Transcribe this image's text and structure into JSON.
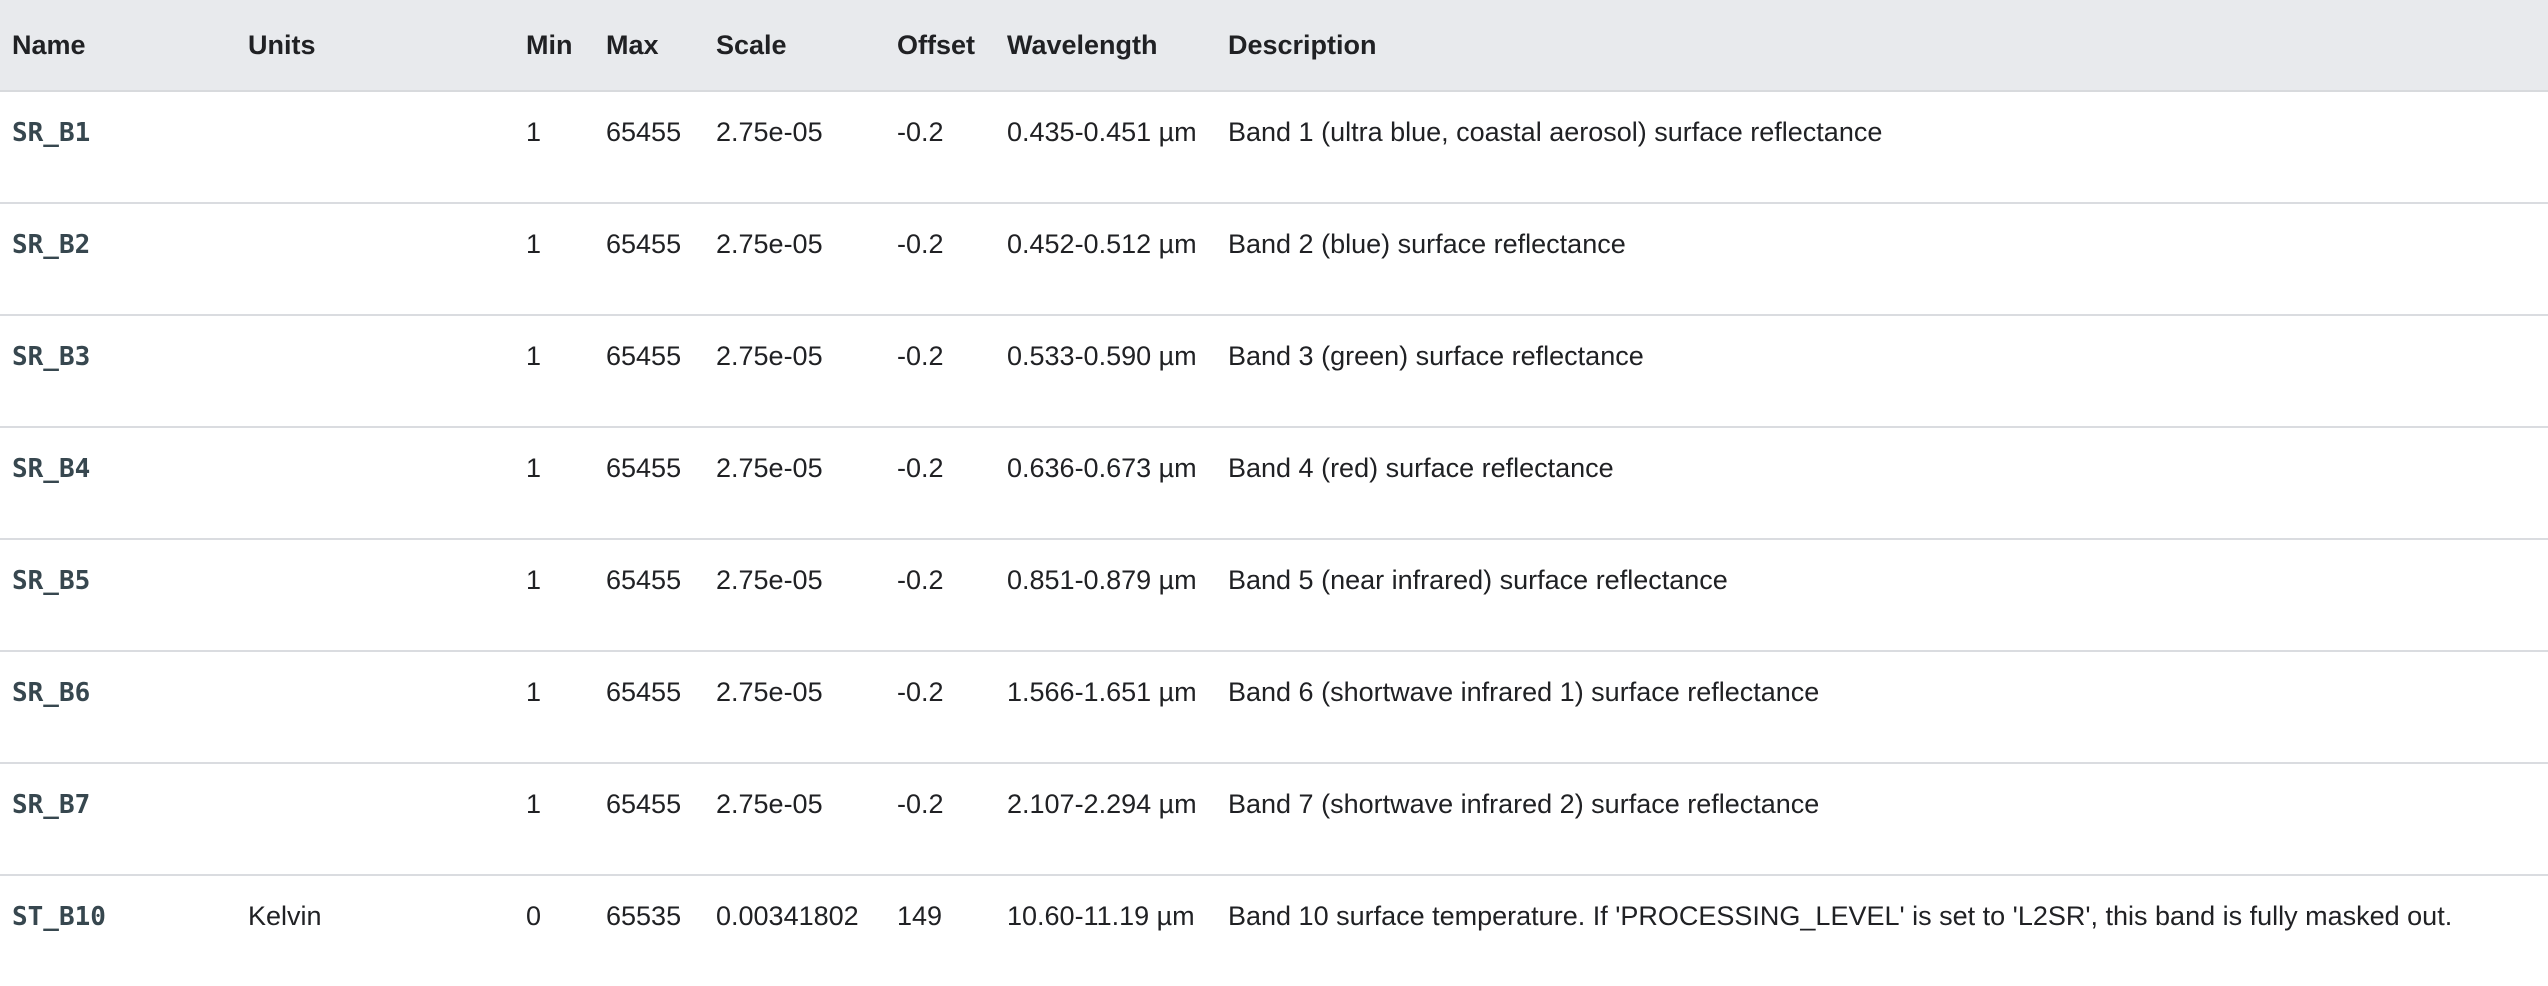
{
  "table": {
    "headers": {
      "name": "Name",
      "units": "Units",
      "min": "Min",
      "max": "Max",
      "scale": "Scale",
      "offset": "Offset",
      "wavelength": "Wavelength",
      "description": "Description"
    },
    "rows": [
      {
        "name": "SR_B1",
        "units": "",
        "min": "1",
        "max": "65455",
        "scale": "2.75e-05",
        "offset": "-0.2",
        "wavelength": "0.435-0.451 µm",
        "description": "Band 1 (ultra blue, coastal aerosol) surface reflectance"
      },
      {
        "name": "SR_B2",
        "units": "",
        "min": "1",
        "max": "65455",
        "scale": "2.75e-05",
        "offset": "-0.2",
        "wavelength": "0.452-0.512 µm",
        "description": "Band 2 (blue) surface reflectance"
      },
      {
        "name": "SR_B3",
        "units": "",
        "min": "1",
        "max": "65455",
        "scale": "2.75e-05",
        "offset": "-0.2",
        "wavelength": "0.533-0.590 µm",
        "description": "Band 3 (green) surface reflectance"
      },
      {
        "name": "SR_B4",
        "units": "",
        "min": "1",
        "max": "65455",
        "scale": "2.75e-05",
        "offset": "-0.2",
        "wavelength": "0.636-0.673 µm",
        "description": "Band 4 (red) surface reflectance"
      },
      {
        "name": "SR_B5",
        "units": "",
        "min": "1",
        "max": "65455",
        "scale": "2.75e-05",
        "offset": "-0.2",
        "wavelength": "0.851-0.879 µm",
        "description": "Band 5 (near infrared) surface reflectance"
      },
      {
        "name": "SR_B6",
        "units": "",
        "min": "1",
        "max": "65455",
        "scale": "2.75e-05",
        "offset": "-0.2",
        "wavelength": "1.566-1.651 µm",
        "description": "Band 6 (shortwave infrared 1) surface reflectance"
      },
      {
        "name": "SR_B7",
        "units": "",
        "min": "1",
        "max": "65455",
        "scale": "2.75e-05",
        "offset": "-0.2",
        "wavelength": "2.107-2.294 µm",
        "description": "Band 7 (shortwave infrared 2) surface reflectance"
      },
      {
        "name": "ST_B10",
        "units": "Kelvin",
        "min": "0",
        "max": "65535",
        "scale": "0.00341802",
        "offset": "149",
        "wavelength": "10.60-11.19 µm",
        "description": "Band 10 surface temperature. If 'PROCESSING_LEVEL' is set to 'L2SR', this band is fully masked out."
      }
    ]
  }
}
